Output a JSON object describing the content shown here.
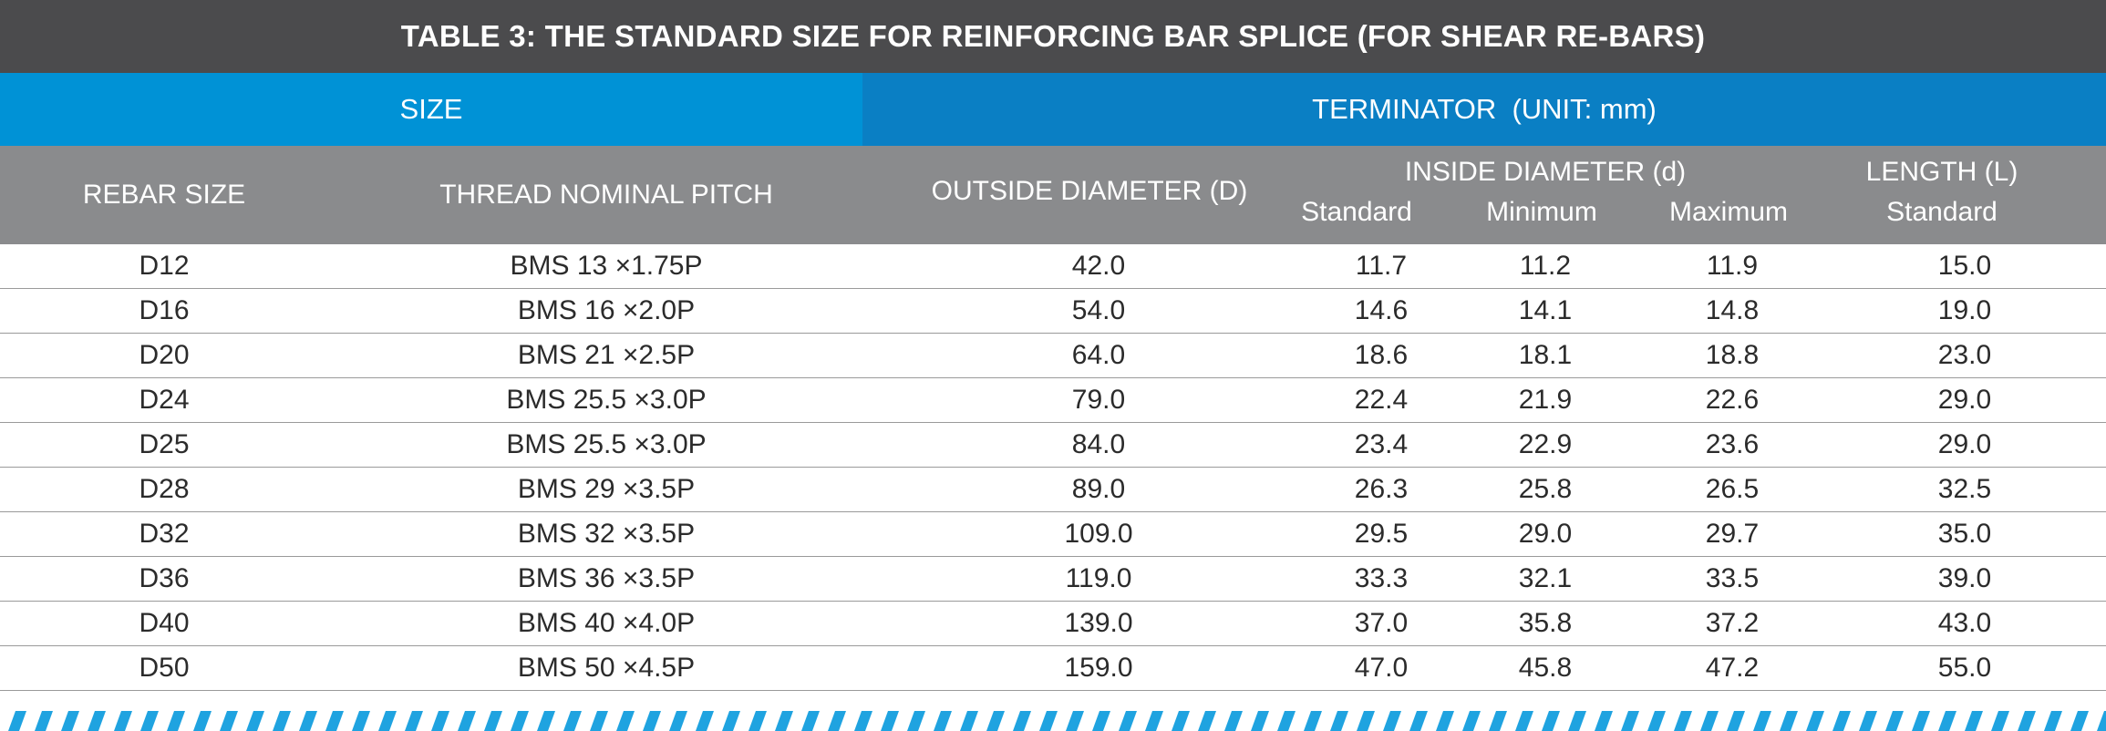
{
  "title": "TABLE 3: THE STANDARD SIZE FOR REINFORCING BAR SPLICE (FOR SHEAR RE-BARS)",
  "groups": {
    "size": "SIZE",
    "terminator": "TERMINATOR  (UNIT: mm)"
  },
  "columns": {
    "rebar_size": "REBAR SIZE",
    "thread_pitch": "THREAD NOMINAL PITCH",
    "outside_diameter": "OUTSIDE DIAMETER (D)",
    "inside_diameter": "INSIDE DIAMETER (d)",
    "inside_standard": "Standard",
    "inside_minimum": "Minimum",
    "inside_maximum": "Maximum",
    "length": "LENGTH (L)",
    "length_standard": "Standard"
  },
  "rows": [
    [
      "D12",
      "BMS 13 ×1.75P",
      "42.0",
      "11.7",
      "11.2",
      "11.9",
      "15.0"
    ],
    [
      "D16",
      "BMS 16 ×2.0P",
      "54.0",
      "14.6",
      "14.1",
      "14.8",
      "19.0"
    ],
    [
      "D20",
      "BMS 21 ×2.5P",
      "64.0",
      "18.6",
      "18.1",
      "18.8",
      "23.0"
    ],
    [
      "D24",
      "BMS 25.5 ×3.0P",
      "79.0",
      "22.4",
      "21.9",
      "22.6",
      "29.0"
    ],
    [
      "D25",
      "BMS 25.5 ×3.0P",
      "84.0",
      "23.4",
      "22.9",
      "23.6",
      "29.0"
    ],
    [
      "D28",
      "BMS 29 ×3.5P",
      "89.0",
      "26.3",
      "25.8",
      "26.5",
      "32.5"
    ],
    [
      "D32",
      "BMS 32 ×3.5P",
      "109.0",
      "29.5",
      "29.0",
      "29.7",
      "35.0"
    ],
    [
      "D36",
      "BMS 36 ×3.5P",
      "119.0",
      "33.3",
      "32.1",
      "33.5",
      "39.0"
    ],
    [
      "D40",
      "BMS 40 ×4.0P",
      "139.0",
      "37.0",
      "35.8",
      "37.2",
      "43.0"
    ],
    [
      "D50",
      "BMS 50 ×4.5P",
      "159.0",
      "47.0",
      "45.8",
      "47.2",
      "55.0"
    ]
  ],
  "colors": {
    "title_bg": "#4b4b4d",
    "size_group_bg": "#0092d6",
    "terminator_group_bg": "#0a7fc4",
    "column_header_bg": "#8a8b8d",
    "stripe": "#1fa3e0"
  }
}
